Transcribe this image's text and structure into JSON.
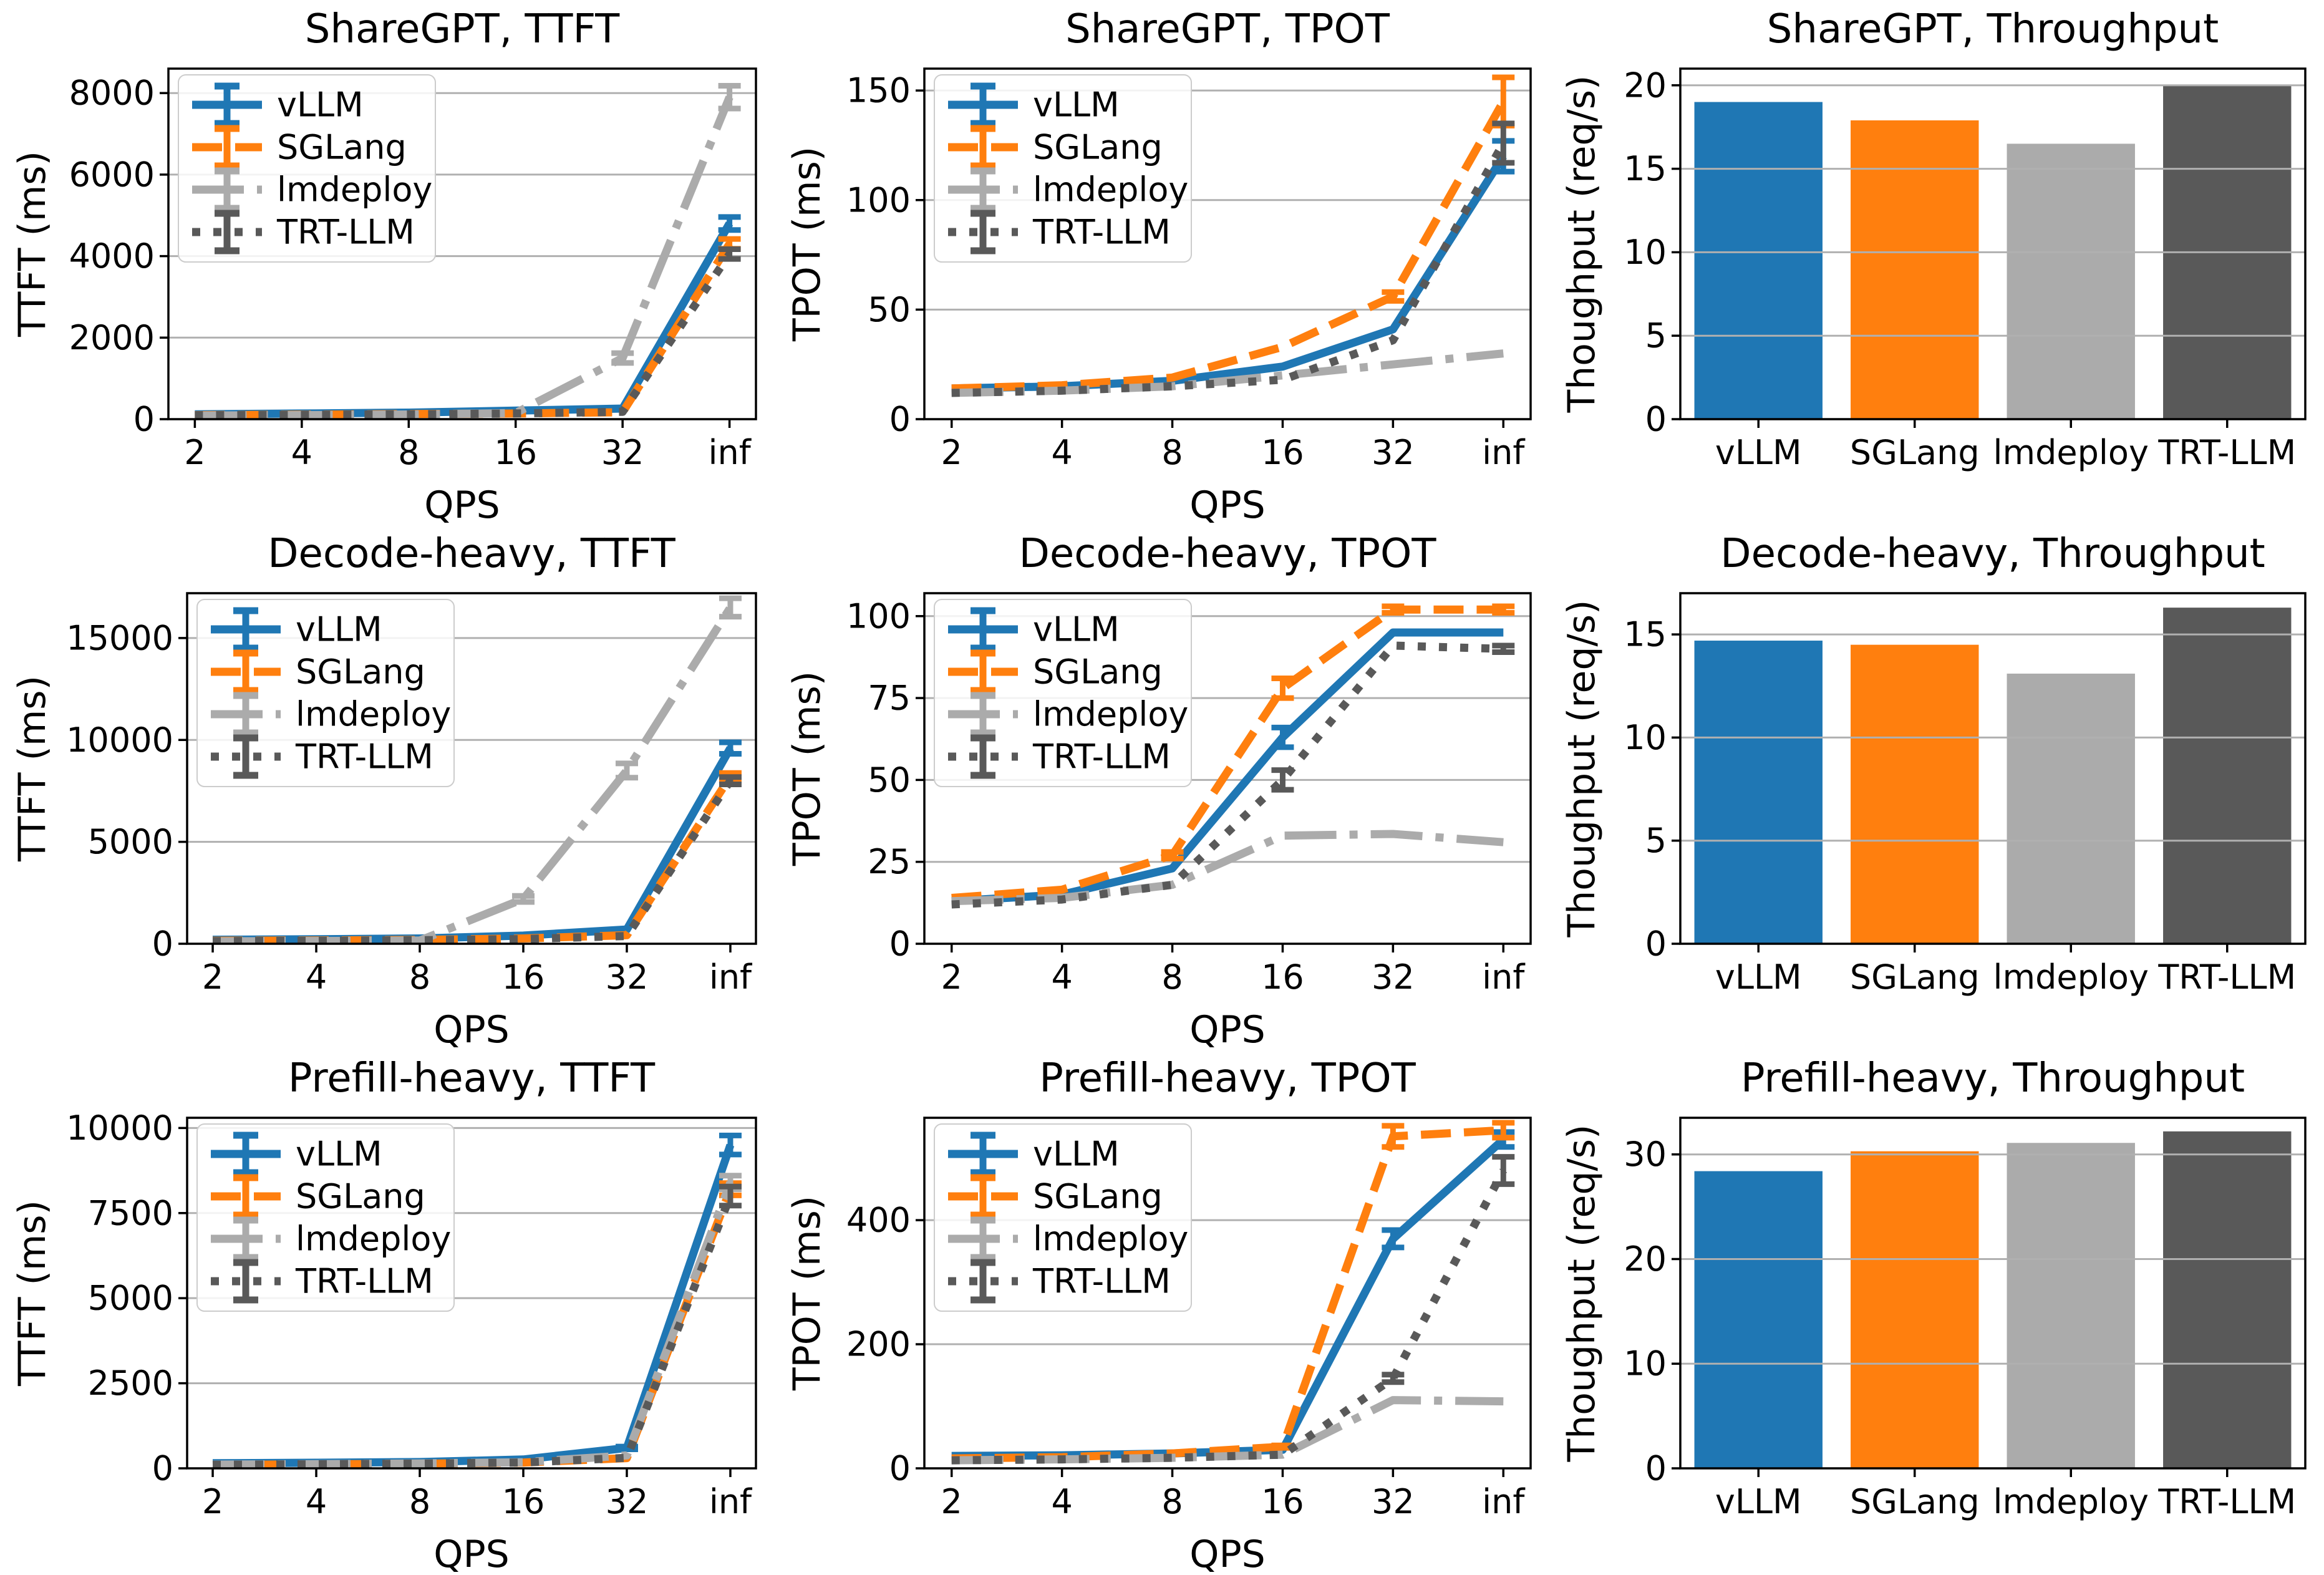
{
  "figure": {
    "background": "#ffffff",
    "grid_color": "#b0b0b0",
    "axis_color": "#000000",
    "legend_labels": [
      "vLLM",
      "SGLang",
      "lmdeploy",
      "TRT-LLM"
    ],
    "legend_border_color": "#cccccc",
    "legend_background": "#ffffff",
    "series_styles": {
      "vLLM": {
        "color": "#1f77b4",
        "linestyle": "solid"
      },
      "SGLang": {
        "color": "#ff7f0e",
        "linestyle": "dashed"
      },
      "lmdeploy": {
        "color": "#ababab",
        "linestyle": "dashdot"
      },
      "TRT-LLM": {
        "color": "#595959",
        "linestyle": "dotted"
      }
    }
  },
  "chart_data": [
    {
      "type": "line",
      "title": "ShareGPT, TTFT",
      "xlabel": "QPS",
      "ylabel": "TTFT (ms)",
      "x_ticklabels": [
        "2",
        "4",
        "8",
        "16",
        "32",
        "inf"
      ],
      "ylim": [
        0,
        8600
      ],
      "yticks": [
        0,
        2000,
        4000,
        6000,
        8000
      ],
      "legend_position": "upper-left",
      "series": [
        {
          "name": "vLLM",
          "values": [
            120,
            140,
            160,
            210,
            260,
            4800
          ],
          "err": [
            0,
            0,
            0,
            0,
            0,
            160
          ]
        },
        {
          "name": "SGLang",
          "values": [
            100,
            110,
            125,
            140,
            170,
            4300
          ],
          "err": [
            0,
            0,
            0,
            0,
            0,
            120
          ]
        },
        {
          "name": "lmdeploy",
          "values": [
            90,
            100,
            115,
            150,
            1500,
            7900
          ],
          "err": [
            0,
            0,
            0,
            0,
            120,
            280
          ]
        },
        {
          "name": "TRT-LLM",
          "values": [
            95,
            105,
            120,
            140,
            180,
            4050
          ],
          "err": [
            0,
            0,
            0,
            0,
            0,
            120
          ]
        }
      ]
    },
    {
      "type": "line",
      "title": "ShareGPT, TPOT",
      "xlabel": "QPS",
      "ylabel": "TPOT (ms)",
      "x_ticklabels": [
        "2",
        "4",
        "8",
        "16",
        "32",
        "inf"
      ],
      "ylim": [
        0,
        160
      ],
      "yticks": [
        0,
        50,
        100,
        150
      ],
      "legend_position": "upper-left",
      "series": [
        {
          "name": "vLLM",
          "values": [
            14,
            15,
            17.5,
            24,
            41,
            120
          ],
          "err": [
            0,
            0,
            0,
            0,
            0,
            7
          ]
        },
        {
          "name": "SGLang",
          "values": [
            14,
            15.5,
            19,
            33,
            56,
            145
          ],
          "err": [
            0,
            0,
            0,
            0,
            2,
            11
          ]
        },
        {
          "name": "lmdeploy",
          "values": [
            12,
            13,
            15,
            20,
            25,
            30
          ],
          "err": [
            0,
            0,
            0,
            0,
            0,
            0
          ]
        },
        {
          "name": "TRT-LLM",
          "values": [
            12,
            13,
            15,
            18,
            36,
            126
          ],
          "err": [
            0,
            0,
            0,
            0,
            0,
            9
          ]
        }
      ]
    },
    {
      "type": "bar",
      "title": "ShareGPT, Throughput",
      "xlabel": "",
      "ylabel": "Thoughput (req/s)",
      "categories": [
        "vLLM",
        "SGLang",
        "lmdeploy",
        "TRT-LLM"
      ],
      "values": [
        19.0,
        17.9,
        16.5,
        20.0
      ],
      "ylim": [
        0,
        21
      ],
      "yticks": [
        0,
        5,
        10,
        15,
        20
      ]
    },
    {
      "type": "line",
      "title": "Decode-heavy, TTFT",
      "xlabel": "QPS",
      "ylabel": "TTFT (ms)",
      "x_ticklabels": [
        "2",
        "4",
        "8",
        "16",
        "32",
        "inf"
      ],
      "ylim": [
        0,
        17200
      ],
      "yticks": [
        0,
        5000,
        10000,
        15000
      ],
      "legend_position": "upper-left",
      "series": [
        {
          "name": "vLLM",
          "values": [
            200,
            220,
            260,
            400,
            700,
            9600
          ],
          "err": [
            0,
            0,
            0,
            0,
            0,
            280
          ]
        },
        {
          "name": "SGLang",
          "values": [
            150,
            160,
            190,
            260,
            420,
            8200
          ],
          "err": [
            0,
            0,
            0,
            0,
            0,
            180
          ]
        },
        {
          "name": "lmdeploy",
          "values": [
            120,
            135,
            160,
            2200,
            8500,
            16500
          ],
          "err": [
            0,
            0,
            0,
            150,
            350,
            450
          ]
        },
        {
          "name": "TRT-LLM",
          "values": [
            130,
            145,
            170,
            230,
            380,
            8000
          ],
          "err": [
            0,
            0,
            0,
            0,
            0,
            180
          ]
        }
      ]
    },
    {
      "type": "line",
      "title": "Decode-heavy, TPOT",
      "xlabel": "QPS",
      "ylabel": "TPOT (ms)",
      "x_ticklabels": [
        "2",
        "4",
        "8",
        "16",
        "32",
        "inf"
      ],
      "ylim": [
        0,
        107
      ],
      "yticks": [
        0,
        25,
        50,
        75,
        100
      ],
      "legend_position": "upper-left",
      "series": [
        {
          "name": "vLLM",
          "values": [
            13,
            15,
            23,
            63,
            95,
            95
          ],
          "err": [
            0,
            0,
            0,
            3,
            0,
            0
          ]
        },
        {
          "name": "SGLang",
          "values": [
            14,
            16.5,
            27,
            78,
            102,
            102
          ],
          "err": [
            0,
            0,
            1,
            3,
            1,
            1
          ]
        },
        {
          "name": "lmdeploy",
          "values": [
            13,
            14,
            18,
            33,
            33.5,
            31
          ],
          "err": [
            0,
            0,
            0,
            0,
            0,
            0
          ]
        },
        {
          "name": "TRT-LLM",
          "values": [
            12,
            13.5,
            18,
            50,
            91,
            90
          ],
          "err": [
            0,
            0,
            0,
            3,
            0,
            1
          ]
        }
      ]
    },
    {
      "type": "bar",
      "title": "Decode-heavy, Throughput",
      "xlabel": "",
      "ylabel": "Thoughput (req/s)",
      "categories": [
        "vLLM",
        "SGLang",
        "lmdeploy",
        "TRT-LLM"
      ],
      "values": [
        14.7,
        14.5,
        13.1,
        16.3
      ],
      "ylim": [
        0,
        17
      ],
      "yticks": [
        0,
        5,
        10,
        15
      ]
    },
    {
      "type": "line",
      "title": "Prefill-heavy, TTFT",
      "xlabel": "QPS",
      "ylabel": "TTFT (ms)",
      "x_ticklabels": [
        "2",
        "4",
        "8",
        "16",
        "32",
        "inf"
      ],
      "ylim": [
        0,
        10300
      ],
      "yticks": [
        0,
        2500,
        5000,
        7500,
        10000
      ],
      "legend_position": "upper-left",
      "series": [
        {
          "name": "vLLM",
          "values": [
            150,
            165,
            185,
            260,
            600,
            9500
          ],
          "err": [
            0,
            0,
            0,
            0,
            40,
            280
          ]
        },
        {
          "name": "SGLang",
          "values": [
            100,
            115,
            135,
            170,
            300,
            8200
          ],
          "err": [
            0,
            0,
            0,
            0,
            0,
            180
          ]
        },
        {
          "name": "lmdeploy",
          "values": [
            110,
            125,
            145,
            180,
            380,
            8400
          ],
          "err": [
            0,
            0,
            0,
            0,
            0,
            200
          ]
        },
        {
          "name": "TRT-LLM",
          "values": [
            105,
            120,
            140,
            170,
            310,
            8000
          ],
          "err": [
            0,
            0,
            0,
            0,
            0,
            280
          ]
        }
      ]
    },
    {
      "type": "line",
      "title": "Prefill-heavy, TPOT",
      "xlabel": "QPS",
      "ylabel": "TPOT (ms)",
      "x_ticklabels": [
        "2",
        "4",
        "8",
        "16",
        "32",
        "inf"
      ],
      "ylim": [
        0,
        565
      ],
      "yticks": [
        0,
        200,
        400
      ],
      "legend_position": "upper-left",
      "series": [
        {
          "name": "vLLM",
          "values": [
            20,
            21,
            24,
            30,
            370,
            530
          ],
          "err": [
            0,
            0,
            0,
            0,
            14,
            12
          ]
        },
        {
          "name": "SGLang",
          "values": [
            16,
            18,
            24,
            35,
            535,
            545
          ],
          "err": [
            0,
            0,
            0,
            2,
            17,
            12
          ]
        },
        {
          "name": "lmdeploy",
          "values": [
            13,
            14.5,
            17,
            22,
            110,
            108
          ],
          "err": [
            0,
            0,
            0,
            0,
            0,
            0
          ]
        },
        {
          "name": "TRT-LLM",
          "values": [
            13,
            14.5,
            17,
            22,
            145,
            480
          ],
          "err": [
            0,
            0,
            0,
            0,
            6,
            22
          ]
        }
      ]
    },
    {
      "type": "bar",
      "title": "Prefill-heavy, Throughput",
      "xlabel": "",
      "ylabel": "Thoughput (req/s)",
      "categories": [
        "vLLM",
        "SGLang",
        "lmdeploy",
        "TRT-LLM"
      ],
      "values": [
        28.4,
        30.3,
        31.1,
        32.2
      ],
      "ylim": [
        0,
        33.5
      ],
      "yticks": [
        0,
        10,
        20,
        30
      ]
    }
  ]
}
